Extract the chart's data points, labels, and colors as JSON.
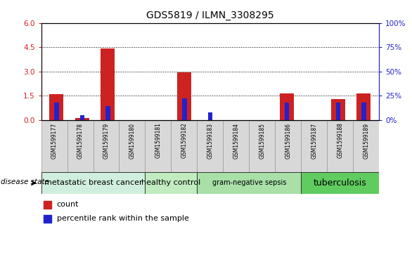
{
  "title": "GDS5819 / ILMN_3308295",
  "samples": [
    "GSM1599177",
    "GSM1599178",
    "GSM1599179",
    "GSM1599180",
    "GSM1599181",
    "GSM1599182",
    "GSM1599183",
    "GSM1599184",
    "GSM1599185",
    "GSM1599186",
    "GSM1599187",
    "GSM1599188",
    "GSM1599189"
  ],
  "count_values": [
    1.6,
    0.1,
    4.4,
    0.0,
    0.0,
    2.95,
    0.0,
    0.0,
    0.0,
    1.65,
    0.0,
    1.3,
    1.65
  ],
  "percentile_values": [
    18,
    5,
    14,
    0,
    0,
    22,
    8,
    0,
    0,
    18,
    0,
    18,
    18
  ],
  "disease_groups": [
    {
      "label": "metastatic breast cancer",
      "start": 0,
      "end": 4,
      "color": "#d0eedd",
      "fontsize": 8
    },
    {
      "label": "healthy control",
      "start": 4,
      "end": 6,
      "color": "#c0ecc0",
      "fontsize": 8
    },
    {
      "label": "gram-negative sepsis",
      "start": 6,
      "end": 10,
      "color": "#a8e0a8",
      "fontsize": 7
    },
    {
      "label": "tuberculosis",
      "start": 10,
      "end": 13,
      "color": "#60cc60",
      "fontsize": 9
    }
  ],
  "ylim_left": [
    0,
    6
  ],
  "ylim_right": [
    0,
    100
  ],
  "yticks_left": [
    0,
    1.5,
    3.0,
    4.5,
    6.0
  ],
  "yticks_right": [
    0,
    25,
    50,
    75,
    100
  ],
  "red_bar_width": 0.55,
  "blue_bar_width": 0.18,
  "count_color": "#cc2222",
  "percentile_color": "#2222cc",
  "bg_color": "#d8d8d8",
  "plot_bg_color": "#ffffff",
  "disease_state_label": "disease state"
}
